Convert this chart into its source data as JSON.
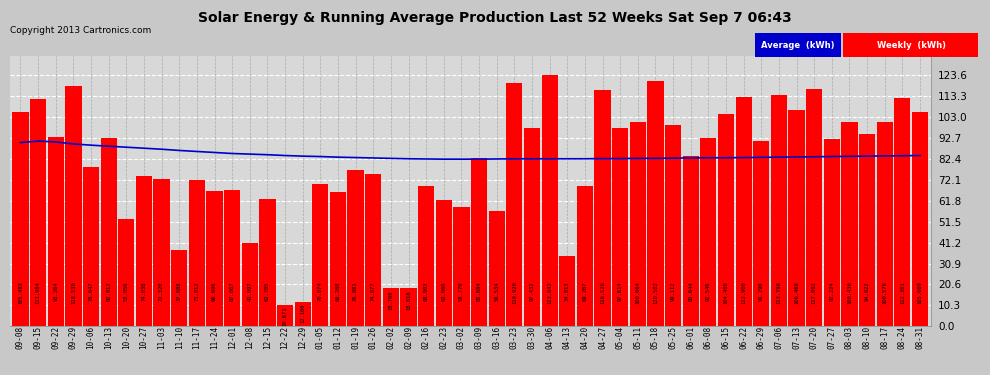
{
  "title": "Solar Energy & Running Average Production Last 52 Weeks Sat Sep 7 06:43",
  "copyright": "Copyright 2013 Cartronics.com",
  "bar_color": "#FF0000",
  "avg_line_color": "#0000CC",
  "background_color": "#C8C8C8",
  "plot_bg_color": "#D8D8D8",
  "grid_color": "#FFFFFF",
  "ylabel_right_values": [
    0.0,
    10.3,
    20.6,
    30.9,
    41.2,
    51.5,
    61.8,
    72.1,
    82.4,
    92.7,
    103.0,
    113.3,
    123.6
  ],
  "legend_avg_color": "#0000CC",
  "legend_weekly_color": "#FF0000",
  "categories": [
    "09-08",
    "09-15",
    "09-22",
    "09-29",
    "10-06",
    "10-13",
    "10-20",
    "10-27",
    "11-03",
    "11-10",
    "11-17",
    "11-24",
    "12-01",
    "12-08",
    "12-15",
    "12-22",
    "12-29",
    "01-05",
    "01-12",
    "01-19",
    "01-26",
    "02-02",
    "02-09",
    "02-16",
    "02-23",
    "03-02",
    "03-09",
    "03-16",
    "03-23",
    "03-30",
    "04-06",
    "04-13",
    "04-20",
    "04-27",
    "05-04",
    "05-11",
    "05-18",
    "05-25",
    "06-01",
    "06-08",
    "06-15",
    "06-22",
    "06-29",
    "07-06",
    "07-13",
    "07-20",
    "07-27",
    "08-03",
    "08-10",
    "08-17",
    "08-24",
    "08-31"
  ],
  "weekly_values": [
    105.493,
    111.984,
    93.264,
    118.53,
    78.647,
    92.912,
    53.056,
    74.038,
    72.32,
    37.688,
    71.812,
    66.696,
    67.067,
    41.097,
    62.705,
    10.671,
    12.18,
    70.074,
    66.288,
    76.881,
    74.877,
    18.7,
    18.818,
    68.903,
    62.06,
    58.77,
    82.684,
    56.534,
    119.92,
    97.432,
    123.642,
    34.813,
    69.207,
    116.526,
    97.614,
    100.664,
    120.582,
    99.112,
    83.644,
    92.546,
    104.406,
    112.9,
    91.29,
    113.79,
    106.468,
    117.092,
    92.224,
    100.436,
    94.922,
    100.576,
    112.301,
    105.609
  ],
  "avg_values": [
    90.5,
    91.2,
    90.8,
    89.8,
    89.2,
    88.7,
    88.2,
    87.7,
    87.2,
    86.6,
    86.1,
    85.6,
    85.1,
    84.8,
    84.5,
    84.1,
    83.8,
    83.6,
    83.3,
    83.1,
    82.9,
    82.7,
    82.5,
    82.4,
    82.3,
    82.3,
    82.3,
    82.4,
    82.5,
    82.5,
    82.5,
    82.5,
    82.5,
    82.6,
    82.6,
    82.7,
    82.7,
    82.8,
    82.9,
    83.0,
    83.0,
    83.1,
    83.2,
    83.3,
    83.4,
    83.5,
    83.6,
    83.7,
    83.8,
    83.9,
    84.0,
    84.1
  ]
}
